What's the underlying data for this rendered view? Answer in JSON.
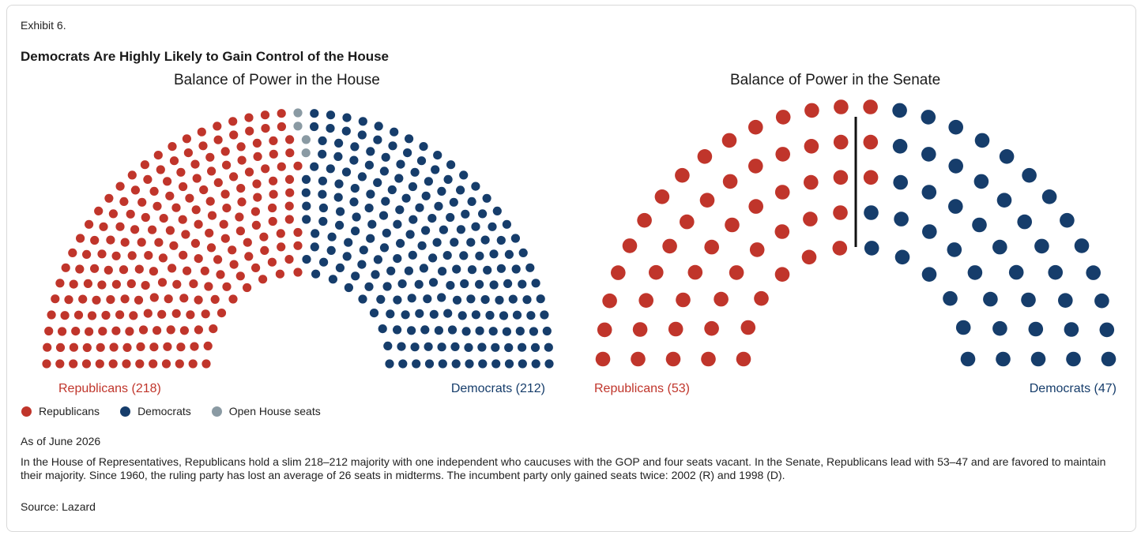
{
  "exhibit_label": "Exhibit 6.",
  "title": "Democrats Are Highly Likely to Gain Control of the House",
  "legend": [
    {
      "label": "Republicans",
      "color": "#c0352b"
    },
    {
      "label": "Democrats",
      "color": "#163d6b"
    },
    {
      "label": "Open House seats",
      "color": "#8a9aa3"
    }
  ],
  "as_of": "As of June 2026",
  "note": "In the House of Representatives, Republicans hold a slim 218–212 majority with one independent who caucuses with the GOP and four seats vacant. In the Senate, Republicans lead with 53–47 and are favored to maintain their majority. Since 1960, the ruling party has lost an average of 26 seats in midterms. The incumbent party only gained seats twice: 2002 (R) and 1998 (D).",
  "source": "Source: Lazard",
  "colors": {
    "republican": "#c0352b",
    "democrat": "#163d6b",
    "open": "#8a9aa3",
    "divider": "#111111"
  },
  "chart_data": [
    {
      "type": "parliament",
      "title": "Balance of Power in the House",
      "series": [
        {
          "name": "Republicans",
          "label": "Republicans (218)",
          "value": 218
        },
        {
          "name": "Open House seats",
          "value": 4
        },
        {
          "name": "Democrats",
          "label": "Democrats (212)",
          "value": 212
        }
      ]
    },
    {
      "type": "parliament",
      "title": "Balance of Power in the Senate",
      "series": [
        {
          "name": "Republicans",
          "label": "Republicans (53)",
          "value": 53
        },
        {
          "name": "Democrats",
          "label": "Democrats (47)",
          "value": 47
        }
      ]
    }
  ]
}
